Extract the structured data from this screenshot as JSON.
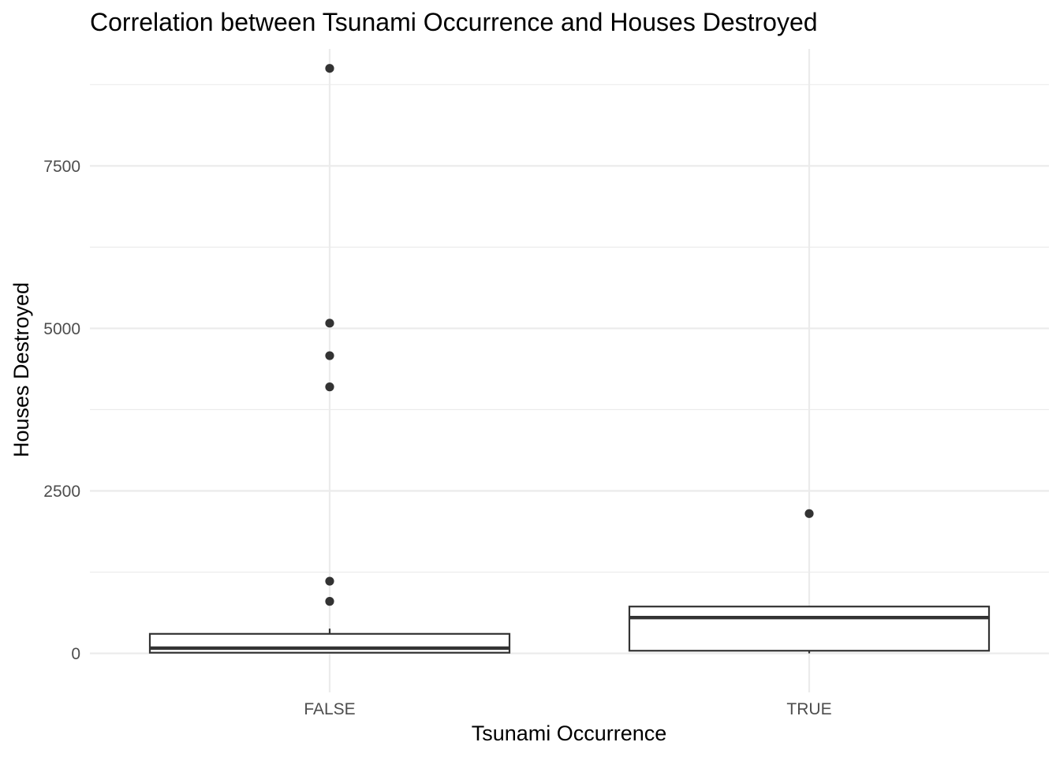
{
  "chart_data": {
    "type": "boxplot",
    "title": "Correlation between Tsunami Occurrence and Houses Destroyed",
    "xlabel": "Tsunami Occurrence",
    "ylabel": "Houses Destroyed",
    "categories": [
      "FALSE",
      "TRUE"
    ],
    "ylim": [
      -600,
      9300
    ],
    "yticks": [
      0,
      2500,
      5000,
      7500
    ],
    "yticks_minor": [
      1250,
      3750,
      6250,
      8750
    ],
    "ytick_labels": [
      "0",
      "2500",
      "5000",
      "7500"
    ],
    "grid": true,
    "boxes": [
      {
        "category": "FALSE",
        "whisker_low": 0,
        "q1": 10,
        "median": 80,
        "q3": 300,
        "whisker_high": 380,
        "outliers": [
          800,
          1110,
          4100,
          4580,
          5080,
          9000
        ]
      },
      {
        "category": "TRUE",
        "whisker_low": 0,
        "q1": 40,
        "median": 550,
        "q3": 720,
        "whisker_high": 720,
        "outliers": [
          2150
        ]
      }
    ],
    "colors": {
      "box_line": "#333333",
      "box_fill": "#ffffff",
      "grid": "#ebebeb",
      "tick_text": "#4d4d4d"
    }
  }
}
